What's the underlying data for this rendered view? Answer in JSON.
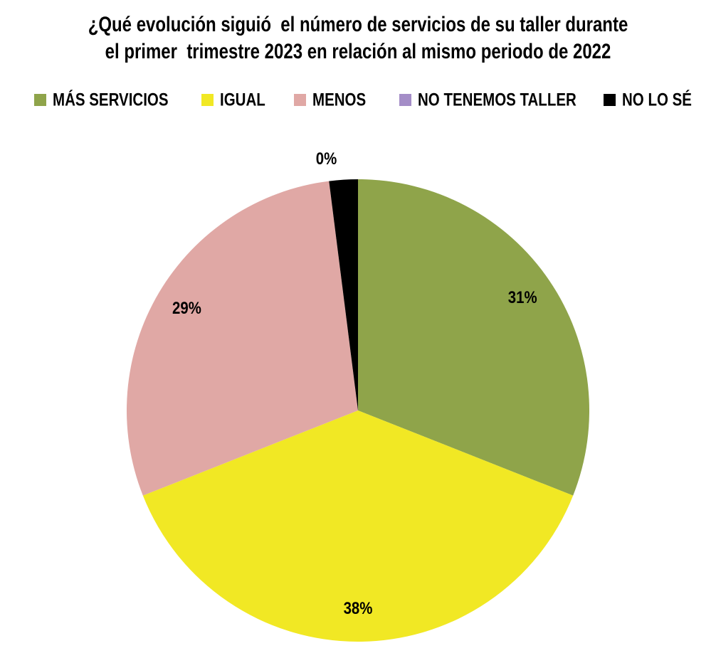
{
  "chart_data": {
    "type": "pie",
    "title": [
      "¿Qué evolución siguió  el número de servicios de su taller durante",
      "el primer  trimestre 2023 en relación al mismo periodo de 2022"
    ],
    "categories": [
      "MÁS SERVICIOS",
      "IGUAL",
      "MENOS",
      "NO TENEMOS TALLER",
      "NO LO SÉ"
    ],
    "values": [
      31,
      38,
      29,
      0,
      2
    ],
    "value_labels": [
      "31%",
      "38%",
      "29%",
      "0%",
      null
    ],
    "colors": [
      "#8fa44a",
      "#f1e824",
      "#e0a8a5",
      "#a48dc7",
      "#000000"
    ],
    "legend": "top"
  }
}
